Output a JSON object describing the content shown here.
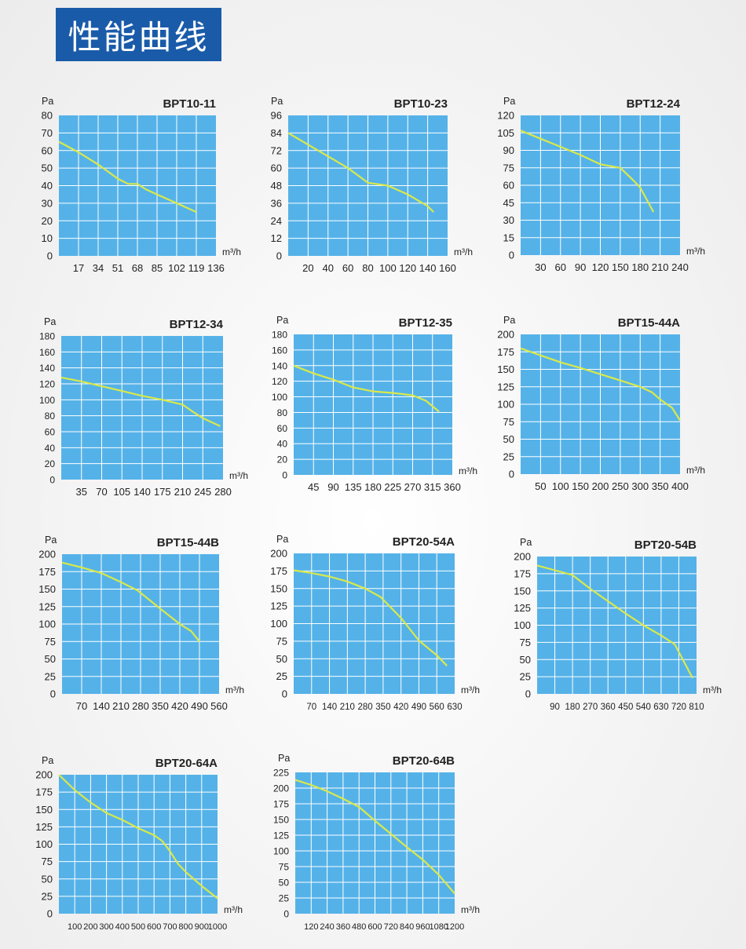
{
  "page": {
    "title": "性能曲线"
  },
  "colors": {
    "plot_bg": "#55b2e8",
    "grid": "#ffffff",
    "curve": "#d9e94a",
    "title_bg": "#1a5ba9"
  },
  "chart_data": [
    {
      "type": "line",
      "title": "BPT10-11",
      "ylabel": "Pa",
      "xlabel": "m³/h",
      "xlim": [
        0,
        136
      ],
      "ylim": [
        0,
        80
      ],
      "x_ticks": [
        "17",
        "34",
        "51",
        "68",
        "85",
        "102",
        "119",
        "136"
      ],
      "y_ticks": [
        "0",
        "10",
        "20",
        "30",
        "40",
        "50",
        "60",
        "70",
        "80"
      ],
      "x": [
        0,
        17,
        34,
        51,
        60,
        68,
        75,
        85,
        102,
        119
      ],
      "y": [
        65,
        59,
        52,
        44,
        41,
        41,
        38,
        35,
        30,
        25
      ]
    },
    {
      "type": "line",
      "title": "BPT10-23",
      "ylabel": "Pa",
      "xlabel": "m³/h",
      "xlim": [
        0,
        160
      ],
      "ylim": [
        0,
        96
      ],
      "x_ticks": [
        "20",
        "40",
        "60",
        "80",
        "100",
        "120",
        "140",
        "160"
      ],
      "y_ticks": [
        "0",
        "12",
        "24",
        "36",
        "48",
        "60",
        "72",
        "84",
        "96"
      ],
      "x": [
        0,
        20,
        40,
        60,
        80,
        100,
        120,
        140,
        146
      ],
      "y": [
        84,
        76,
        68,
        60,
        50,
        48,
        42,
        34,
        30
      ]
    },
    {
      "type": "line",
      "title": "BPT12-24",
      "ylabel": "Pa",
      "xlabel": "m³/h",
      "xlim": [
        0,
        240
      ],
      "ylim": [
        0,
        120
      ],
      "x_ticks": [
        "30",
        "60",
        "90",
        "120",
        "150",
        "180",
        "210",
        "240"
      ],
      "y_ticks": [
        "0",
        "15",
        "30",
        "45",
        "60",
        "75",
        "90",
        "105",
        "120"
      ],
      "x": [
        0,
        30,
        60,
        90,
        120,
        150,
        170,
        180,
        200
      ],
      "y": [
        107,
        100,
        93,
        86,
        78,
        75,
        64,
        58,
        37
      ]
    },
    {
      "type": "line",
      "title": "BPT12-34",
      "ylabel": "Pa",
      "xlabel": "m³/h",
      "xlim": [
        0,
        280
      ],
      "ylim": [
        0,
        180
      ],
      "x_ticks": [
        "35",
        "70",
        "105",
        "140",
        "175",
        "210",
        "245",
        "280"
      ],
      "y_ticks": [
        "0",
        "20",
        "40",
        "60",
        "80",
        "100",
        "120",
        "140",
        "160",
        "180"
      ],
      "x": [
        0,
        35,
        70,
        105,
        140,
        175,
        210,
        230,
        245,
        275
      ],
      "y": [
        128,
        123,
        117,
        111,
        105,
        100,
        94,
        84,
        77,
        67
      ]
    },
    {
      "type": "line",
      "title": "BPT12-35",
      "ylabel": "Pa",
      "xlabel": "m³/h",
      "xlim": [
        0,
        360
      ],
      "ylim": [
        0,
        180
      ],
      "x_ticks": [
        "45",
        "90",
        "135",
        "180",
        "225",
        "270",
        "315",
        "360"
      ],
      "y_ticks": [
        "0",
        "20",
        "40",
        "60",
        "80",
        "100",
        "120",
        "140",
        "160",
        "180"
      ],
      "x": [
        0,
        45,
        90,
        135,
        180,
        225,
        270,
        300,
        315,
        330
      ],
      "y": [
        140,
        130,
        122,
        112,
        107,
        105,
        102,
        95,
        88,
        81
      ]
    },
    {
      "type": "line",
      "title": "BPT15-44A",
      "ylabel": "Pa",
      "xlabel": "m³/h",
      "xlim": [
        0,
        400
      ],
      "ylim": [
        0,
        200
      ],
      "x_ticks": [
        "50",
        "100",
        "150",
        "200",
        "250",
        "300",
        "350",
        "400"
      ],
      "y_ticks": [
        "0",
        "25",
        "50",
        "75",
        "100",
        "125",
        "150",
        "175",
        "200"
      ],
      "x": [
        0,
        50,
        100,
        150,
        200,
        250,
        300,
        330,
        350,
        380,
        400
      ],
      "y": [
        180,
        170,
        160,
        152,
        143,
        134,
        125,
        117,
        107,
        95,
        77
      ]
    },
    {
      "type": "line",
      "title": "BPT15-44B",
      "ylabel": "Pa",
      "xlabel": "m³/h",
      "xlim": [
        0,
        560
      ],
      "ylim": [
        0,
        200
      ],
      "x_ticks": [
        "70",
        "140",
        "210",
        "280",
        "350",
        "420",
        "490",
        "560"
      ],
      "y_ticks": [
        "0",
        "25",
        "50",
        "75",
        "100",
        "125",
        "150",
        "175",
        "200"
      ],
      "x": [
        0,
        70,
        140,
        210,
        270,
        350,
        420,
        460,
        490
      ],
      "y": [
        188,
        181,
        173,
        160,
        148,
        122,
        100,
        90,
        75
      ]
    },
    {
      "type": "line",
      "title": "BPT20-54A",
      "ylabel": "Pa",
      "xlabel": "m³/h",
      "xlim": [
        0,
        630
      ],
      "ylim": [
        0,
        200
      ],
      "x_ticks": [
        "70",
        "140",
        "210",
        "280",
        "350",
        "420",
        "490",
        "560",
        "630"
      ],
      "y_ticks": [
        "0",
        "25",
        "50",
        "75",
        "100",
        "125",
        "150",
        "175",
        "200"
      ],
      "x": [
        0,
        70,
        140,
        210,
        280,
        340,
        420,
        490,
        560,
        600
      ],
      "y": [
        176,
        172,
        167,
        160,
        150,
        138,
        108,
        76,
        55,
        40
      ]
    },
    {
      "type": "line",
      "title": "BPT20-54B",
      "ylabel": "Pa",
      "xlabel": "m³/h",
      "xlim": [
        0,
        810
      ],
      "ylim": [
        0,
        200
      ],
      "x_ticks": [
        "90",
        "180",
        "270",
        "360",
        "450",
        "540",
        "630",
        "720",
        "810"
      ],
      "y_ticks": [
        "0",
        "25",
        "50",
        "75",
        "100",
        "125",
        "150",
        "175",
        "200"
      ],
      "x": [
        0,
        90,
        180,
        270,
        360,
        450,
        540,
        630,
        700,
        790
      ],
      "y": [
        187,
        180,
        173,
        153,
        135,
        117,
        100,
        85,
        72,
        23
      ]
    },
    {
      "type": "line",
      "title": "BPT20-64A",
      "ylabel": "Pa",
      "xlabel": "m³/h",
      "xlim": [
        0,
        1000
      ],
      "ylim": [
        0,
        200
      ],
      "x_ticks": [
        "100",
        "200",
        "300",
        "400",
        "500",
        "600",
        "700",
        "800",
        "900",
        "1000"
      ],
      "y_ticks": [
        "0",
        "25",
        "50",
        "75",
        "100",
        "125",
        "150",
        "175",
        "200"
      ],
      "x": [
        0,
        100,
        200,
        300,
        400,
        500,
        600,
        650,
        700,
        750,
        800,
        900,
        1000
      ],
      "y": [
        200,
        178,
        160,
        145,
        135,
        123,
        113,
        105,
        90,
        72,
        60,
        40,
        22
      ]
    },
    {
      "type": "line",
      "title": "BPT20-64B",
      "ylabel": "Pa",
      "xlabel": "m³/h",
      "xlim": [
        0,
        1200
      ],
      "ylim": [
        0,
        225
      ],
      "x_ticks": [
        "120",
        "240",
        "360",
        "480",
        "600",
        "720",
        "840",
        "960",
        "1080",
        "1200"
      ],
      "y_ticks": [
        "0",
        "25",
        "50",
        "75",
        "100",
        "125",
        "150",
        "175",
        "200",
        "225"
      ],
      "x": [
        0,
        120,
        240,
        360,
        480,
        600,
        720,
        840,
        960,
        1080,
        1200
      ],
      "y": [
        213,
        205,
        195,
        183,
        170,
        148,
        127,
        106,
        86,
        62,
        32
      ]
    }
  ]
}
